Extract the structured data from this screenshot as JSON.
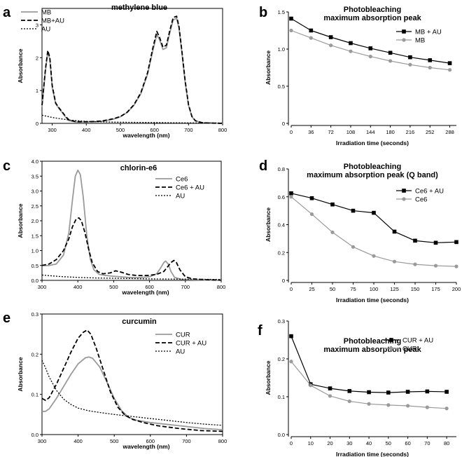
{
  "panels": [
    {
      "label": "a"
    },
    {
      "label": "b"
    },
    {
      "label": "c"
    },
    {
      "label": "d"
    },
    {
      "label": "e"
    },
    {
      "label": "f"
    }
  ],
  "colors": {
    "gray": "#9a9a9a",
    "black": "#000000",
    "dark_gray": "#333333"
  },
  "chart_data": [
    {
      "type": "line",
      "title": "methylene blue",
      "xlabel": "wavelength (nm)",
      "ylabel": "Absorbance",
      "xlim": [
        270,
        800
      ],
      "ylim": [
        0,
        3.5
      ],
      "xticks": [
        300,
        400,
        500,
        600,
        700,
        800
      ],
      "yticks": [
        0,
        1,
        2,
        3
      ],
      "legend_position": "top-left",
      "series": [
        {
          "name": "MB",
          "style": "solid",
          "color": "#9a9a9a",
          "x": [
            270,
            280,
            287,
            293,
            300,
            310,
            320,
            330,
            340,
            350,
            370,
            400,
            430,
            450,
            480,
            500,
            520,
            540,
            560,
            580,
            595,
            607,
            615,
            625,
            635,
            645,
            655,
            665,
            672,
            680,
            690,
            700,
            710,
            720,
            740,
            760,
            800
          ],
          "y": [
            0.5,
            1.6,
            2.18,
            1.95,
            1.1,
            0.6,
            0.45,
            0.32,
            0.18,
            0.08,
            0.04,
            0.04,
            0.05,
            0.07,
            0.13,
            0.2,
            0.33,
            0.55,
            0.9,
            1.5,
            2.2,
            2.7,
            2.55,
            2.25,
            2.3,
            2.75,
            3.15,
            3.2,
            2.9,
            2.2,
            1.25,
            0.55,
            0.2,
            0.08,
            0.02,
            0.01,
            0.0
          ]
        },
        {
          "name": "MB+AU",
          "style": "dashed",
          "color": "#000000",
          "x": [
            270,
            280,
            287,
            293,
            300,
            310,
            320,
            330,
            340,
            350,
            370,
            400,
            430,
            450,
            480,
            500,
            520,
            540,
            560,
            580,
            595,
            607,
            615,
            625,
            635,
            645,
            655,
            665,
            672,
            680,
            690,
            700,
            710,
            720,
            740,
            760,
            800
          ],
          "y": [
            0.55,
            1.65,
            2.22,
            2.0,
            1.15,
            0.62,
            0.47,
            0.34,
            0.2,
            0.1,
            0.05,
            0.05,
            0.06,
            0.08,
            0.14,
            0.21,
            0.34,
            0.57,
            0.93,
            1.55,
            2.28,
            2.8,
            2.62,
            2.32,
            2.38,
            2.82,
            3.22,
            3.26,
            2.95,
            2.25,
            1.3,
            0.57,
            0.21,
            0.08,
            0.02,
            0.01,
            0.0
          ]
        },
        {
          "name": "AU",
          "style": "dotted",
          "color": "#000000",
          "x": [
            270,
            300,
            350,
            400,
            450,
            500,
            550,
            600,
            650,
            700,
            750,
            800
          ],
          "y": [
            0.25,
            0.18,
            0.1,
            0.06,
            0.045,
            0.035,
            0.03,
            0.025,
            0.02,
            0.015,
            0.012,
            0.01
          ]
        }
      ]
    },
    {
      "type": "line",
      "title": "Photobleaching",
      "subtitle": "maximum absorption peak",
      "xlabel": "Irradiation time (seconds)",
      "ylabel": "Absorbance",
      "xlim": [
        0,
        300
      ],
      "ylim": [
        0,
        1.5
      ],
      "xticks": [
        0,
        36,
        72,
        108,
        144,
        180,
        216,
        252,
        288
      ],
      "yticks": [
        0,
        0.5,
        1.0,
        1.5
      ],
      "ytick_labels": [
        "0",
        "0.5",
        "1.0",
        "1.5"
      ],
      "legend_position": "top-right",
      "series": [
        {
          "name": "MB + AU",
          "marker": "square",
          "color": "#000000",
          "x": [
            0,
            36,
            72,
            108,
            144,
            180,
            216,
            252,
            288
          ],
          "y": [
            1.41,
            1.25,
            1.16,
            1.08,
            1.01,
            0.95,
            0.89,
            0.85,
            0.81
          ]
        },
        {
          "name": "MB",
          "marker": "circle",
          "color": "#9a9a9a",
          "x": [
            0,
            36,
            72,
            108,
            144,
            180,
            216,
            252,
            288
          ],
          "y": [
            1.25,
            1.15,
            1.05,
            0.97,
            0.9,
            0.84,
            0.79,
            0.75,
            0.72
          ]
        }
      ]
    },
    {
      "type": "line",
      "title": "chlorin-e6",
      "xlabel": "wavelength (nm)",
      "ylabel": "Absorbance",
      "xlim": [
        300,
        800
      ],
      "ylim": [
        0,
        4.0
      ],
      "xticks": [
        300,
        400,
        500,
        600,
        700,
        800
      ],
      "yticks": [
        0,
        0.5,
        1.0,
        1.5,
        2.0,
        2.5,
        3.0,
        3.5,
        4.0
      ],
      "ytick_labels": [
        "0.0",
        "0.5",
        "1.0",
        "1.5",
        "2.0",
        "2.5",
        "3.0",
        "3.5",
        "4.0"
      ],
      "legend_position": "top-right",
      "series": [
        {
          "name": "Ce6",
          "style": "solid",
          "color": "#9a9a9a",
          "x": [
            300,
            320,
            340,
            360,
            375,
            385,
            393,
            400,
            407,
            415,
            425,
            435,
            445,
            460,
            480,
            500,
            520,
            540,
            560,
            580,
            600,
            620,
            630,
            640,
            645,
            652,
            660,
            670,
            690,
            720,
            760,
            800
          ],
          "y": [
            0.5,
            0.5,
            0.55,
            0.85,
            1.6,
            2.7,
            3.5,
            3.7,
            3.55,
            2.8,
            1.5,
            0.7,
            0.35,
            0.2,
            0.16,
            0.14,
            0.12,
            0.1,
            0.09,
            0.1,
            0.12,
            0.22,
            0.4,
            0.6,
            0.65,
            0.55,
            0.3,
            0.1,
            0.03,
            0.02,
            0.01,
            0.0
          ]
        },
        {
          "name": "Ce6 + AU",
          "style": "dashed",
          "color": "#000000",
          "x": [
            300,
            320,
            340,
            360,
            375,
            385,
            395,
            403,
            410,
            420,
            430,
            440,
            455,
            470,
            490,
            505,
            520,
            540,
            560,
            580,
            600,
            620,
            640,
            650,
            660,
            668,
            675,
            685,
            700,
            720,
            760,
            800
          ],
          "y": [
            0.5,
            0.55,
            0.7,
            1.0,
            1.4,
            1.8,
            2.05,
            2.1,
            2.0,
            1.6,
            1.05,
            0.6,
            0.3,
            0.22,
            0.25,
            0.32,
            0.28,
            0.2,
            0.17,
            0.16,
            0.17,
            0.2,
            0.3,
            0.45,
            0.6,
            0.67,
            0.6,
            0.35,
            0.12,
            0.05,
            0.02,
            0.01
          ]
        },
        {
          "name": "AU",
          "style": "dotted",
          "color": "#000000",
          "x": [
            300,
            350,
            400,
            450,
            500,
            550,
            600,
            650,
            700,
            750,
            800
          ],
          "y": [
            0.18,
            0.13,
            0.1,
            0.08,
            0.07,
            0.06,
            0.05,
            0.045,
            0.04,
            0.035,
            0.03
          ]
        }
      ]
    },
    {
      "type": "line",
      "title": "Photobleaching",
      "subtitle": "maximum absorption peak (Q band)",
      "xlabel": "Irradiation time (seconds)",
      "ylabel": "Absorbance",
      "xlim": [
        0,
        200
      ],
      "ylim": [
        0,
        0.8
      ],
      "xticks": [
        0,
        25,
        50,
        75,
        100,
        125,
        150,
        175,
        200
      ],
      "yticks": [
        0,
        0.2,
        0.4,
        0.6,
        0.8
      ],
      "ytick_labels": [
        "0",
        "0.2",
        "0.4",
        "0.6",
        "0.8"
      ],
      "legend_position": "top-right",
      "series": [
        {
          "name": "Ce6 + AU",
          "marker": "square",
          "color": "#000000",
          "x": [
            0,
            25,
            50,
            75,
            100,
            125,
            150,
            175,
            200
          ],
          "y": [
            0.625,
            0.59,
            0.545,
            0.5,
            0.485,
            0.35,
            0.285,
            0.27,
            0.275
          ]
        },
        {
          "name": "Ce6",
          "marker": "circle",
          "color": "#9a9a9a",
          "x": [
            0,
            25,
            50,
            75,
            100,
            125,
            150,
            175,
            200
          ],
          "y": [
            0.6,
            0.475,
            0.345,
            0.24,
            0.175,
            0.135,
            0.115,
            0.105,
            0.1
          ]
        }
      ]
    },
    {
      "type": "line",
      "title": "curcumin",
      "xlabel": "wavelength (nm)",
      "ylabel": "Absorbance",
      "xlim": [
        300,
        800
      ],
      "ylim": [
        0,
        0.3
      ],
      "xticks": [
        300,
        400,
        500,
        600,
        700,
        800
      ],
      "yticks": [
        0,
        0.1,
        0.2,
        0.3
      ],
      "ytick_labels": [
        "0.0",
        "0.1",
        "0.2",
        "0.3"
      ],
      "legend_position": "top-right",
      "series": [
        {
          "name": "CUR",
          "style": "solid",
          "color": "#9a9a9a",
          "x": [
            300,
            310,
            320,
            340,
            360,
            380,
            400,
            420,
            430,
            440,
            460,
            480,
            500,
            520,
            540,
            560,
            600,
            650,
            700,
            750,
            800
          ],
          "y": [
            0.057,
            0.058,
            0.064,
            0.09,
            0.12,
            0.15,
            0.176,
            0.191,
            0.193,
            0.19,
            0.168,
            0.13,
            0.09,
            0.06,
            0.043,
            0.036,
            0.03,
            0.025,
            0.02,
            0.015,
            0.012
          ]
        },
        {
          "name": "CUR + AU",
          "style": "dashed",
          "color": "#000000",
          "x": [
            300,
            310,
            320,
            340,
            360,
            380,
            400,
            415,
            425,
            435,
            450,
            470,
            490,
            510,
            530,
            550,
            580,
            620,
            680,
            740,
            800
          ],
          "y": [
            0.09,
            0.085,
            0.092,
            0.125,
            0.165,
            0.205,
            0.24,
            0.255,
            0.26,
            0.25,
            0.215,
            0.16,
            0.105,
            0.068,
            0.048,
            0.038,
            0.03,
            0.022,
            0.015,
            0.01,
            0.008
          ]
        },
        {
          "name": "AU",
          "style": "dotted",
          "color": "#000000",
          "x": [
            300,
            310,
            320,
            340,
            360,
            380,
            400,
            430,
            460,
            500,
            550,
            600,
            650,
            700,
            750,
            800
          ],
          "y": [
            0.185,
            0.165,
            0.143,
            0.11,
            0.088,
            0.075,
            0.066,
            0.059,
            0.055,
            0.05,
            0.045,
            0.04,
            0.035,
            0.03,
            0.026,
            0.023
          ]
        }
      ]
    },
    {
      "type": "line",
      "title": "Photobleaching",
      "subtitle": "maximum absorption peak",
      "xlabel": "Irradiation time (seconds)",
      "ylabel": "Absorbance",
      "xlim": [
        0,
        85
      ],
      "ylim": [
        0,
        0.3
      ],
      "xticks": [
        0,
        10,
        20,
        30,
        40,
        50,
        60,
        70,
        80
      ],
      "yticks": [
        0,
        0.1,
        0.2,
        0.3
      ],
      "ytick_labels": [
        "0.0",
        "0.1",
        "0.2",
        "0.3"
      ],
      "legend_position": "top-right",
      "series": [
        {
          "name": "CUR + AU",
          "marker": "square",
          "color": "#000000",
          "x": [
            0,
            10,
            20,
            30,
            40,
            50,
            60,
            70,
            80
          ],
          "y": [
            0.26,
            0.133,
            0.122,
            0.115,
            0.112,
            0.111,
            0.113,
            0.114,
            0.113
          ]
        },
        {
          "name": "CUR",
          "marker": "circle",
          "color": "#9a9a9a",
          "x": [
            0,
            10,
            20,
            30,
            40,
            50,
            60,
            70,
            80
          ],
          "y": [
            0.193,
            0.13,
            0.102,
            0.088,
            0.081,
            0.078,
            0.076,
            0.072,
            0.069
          ]
        }
      ]
    }
  ]
}
